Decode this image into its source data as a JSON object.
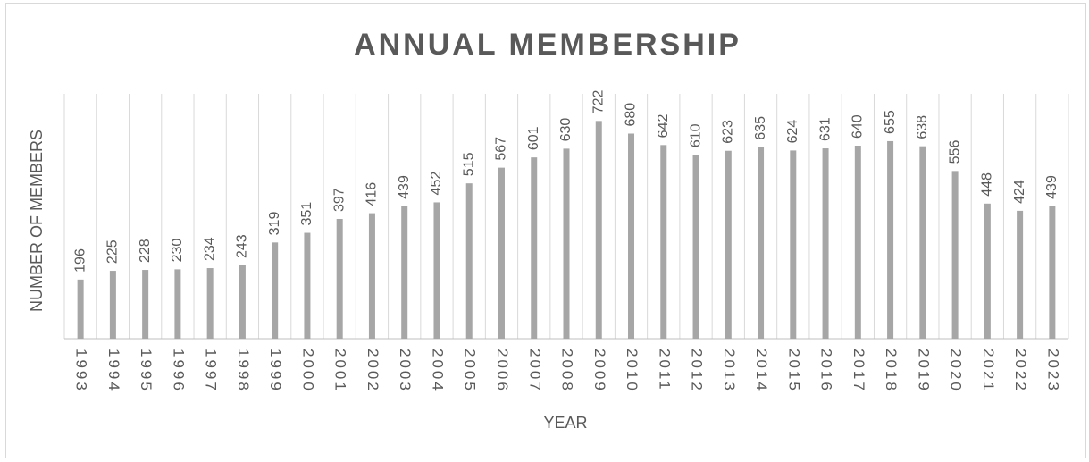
{
  "chart_data": {
    "type": "bar",
    "title": "ANNUAL MEMBERSHIP",
    "x_label": "YEAR",
    "y_label": "NUMBER OF MEMBERS",
    "categories": [
      "1993",
      "1994",
      "1995",
      "1996",
      "1997",
      "1998",
      "1999",
      "2000",
      "2001",
      "2002",
      "2003",
      "2004",
      "2005",
      "2006",
      "2007",
      "2008",
      "2009",
      "2010",
      "2011",
      "2012",
      "2013",
      "2014",
      "2015",
      "2016",
      "2017",
      "2018",
      "2019",
      "2020",
      "2021",
      "2022",
      "2023"
    ],
    "values": [
      196,
      225,
      228,
      230,
      234,
      243,
      319,
      351,
      397,
      416,
      439,
      452,
      515,
      567,
      601,
      630,
      722,
      680,
      642,
      610,
      623,
      635,
      624,
      631,
      640,
      655,
      638,
      556,
      448,
      424,
      439
    ],
    "color": "#a6a6a6",
    "ylim": [
      0,
      800
    ],
    "grid": true
  }
}
